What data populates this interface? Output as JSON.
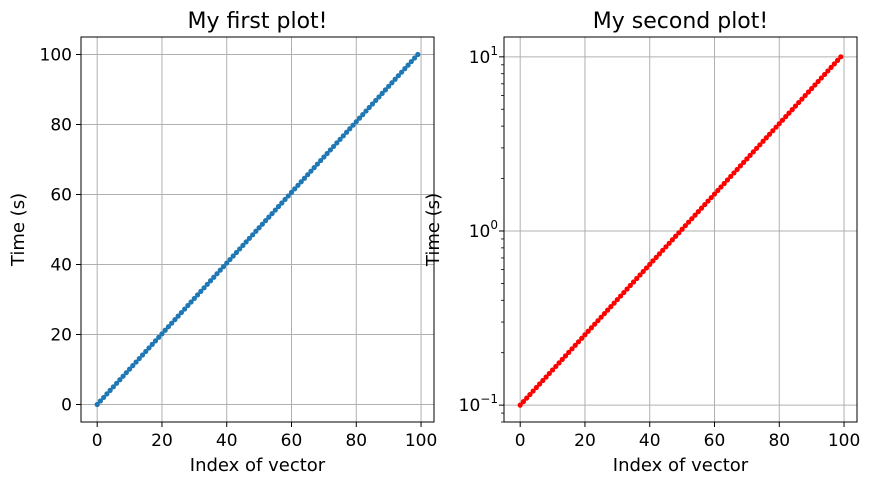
{
  "chart_data": [
    {
      "type": "line",
      "title": "My first plot!",
      "xlabel": "Index of vector",
      "ylabel": "Time (s)",
      "xlim": [
        -5,
        104
      ],
      "ylim": [
        -5,
        105
      ],
      "yscale": "linear",
      "grid": true,
      "marker": "dot",
      "color": "#1f77b4",
      "x_ticks": [
        0,
        20,
        40,
        60,
        80,
        100
      ],
      "x_tick_labels": [
        "0",
        "20",
        "40",
        "60",
        "80",
        "100"
      ],
      "y_ticks": [
        0,
        20,
        40,
        60,
        80,
        100
      ],
      "y_tick_labels": [
        "0",
        "20",
        "40",
        "60",
        "80",
        "100"
      ],
      "series": [
        {
          "x_start": 0,
          "x_end": 99,
          "y_start": 0,
          "y_end": 100,
          "n_points": 100,
          "spacing": "linear"
        }
      ]
    },
    {
      "type": "line",
      "title": "My second plot!",
      "xlabel": "Index of vector",
      "ylabel": "Time (s)",
      "xlim": [
        -5,
        104
      ],
      "ylim": [
        0.08,
        13
      ],
      "yscale": "log",
      "grid": true,
      "marker": "dot",
      "color": "#ff0000",
      "x_ticks": [
        0,
        20,
        40,
        60,
        80,
        100
      ],
      "x_tick_labels": [
        "0",
        "20",
        "40",
        "60",
        "80",
        "100"
      ],
      "y_ticks": [
        0.1,
        1,
        10
      ],
      "y_tick_labels": [
        {
          "base": "10",
          "exp": "−1"
        },
        {
          "base": "10",
          "exp": "0"
        },
        {
          "base": "10",
          "exp": "1"
        }
      ],
      "series": [
        {
          "x_start": 0,
          "x_end": 99,
          "y_start": 0.1,
          "y_end": 10,
          "n_points": 100,
          "spacing": "geometric"
        }
      ]
    }
  ]
}
